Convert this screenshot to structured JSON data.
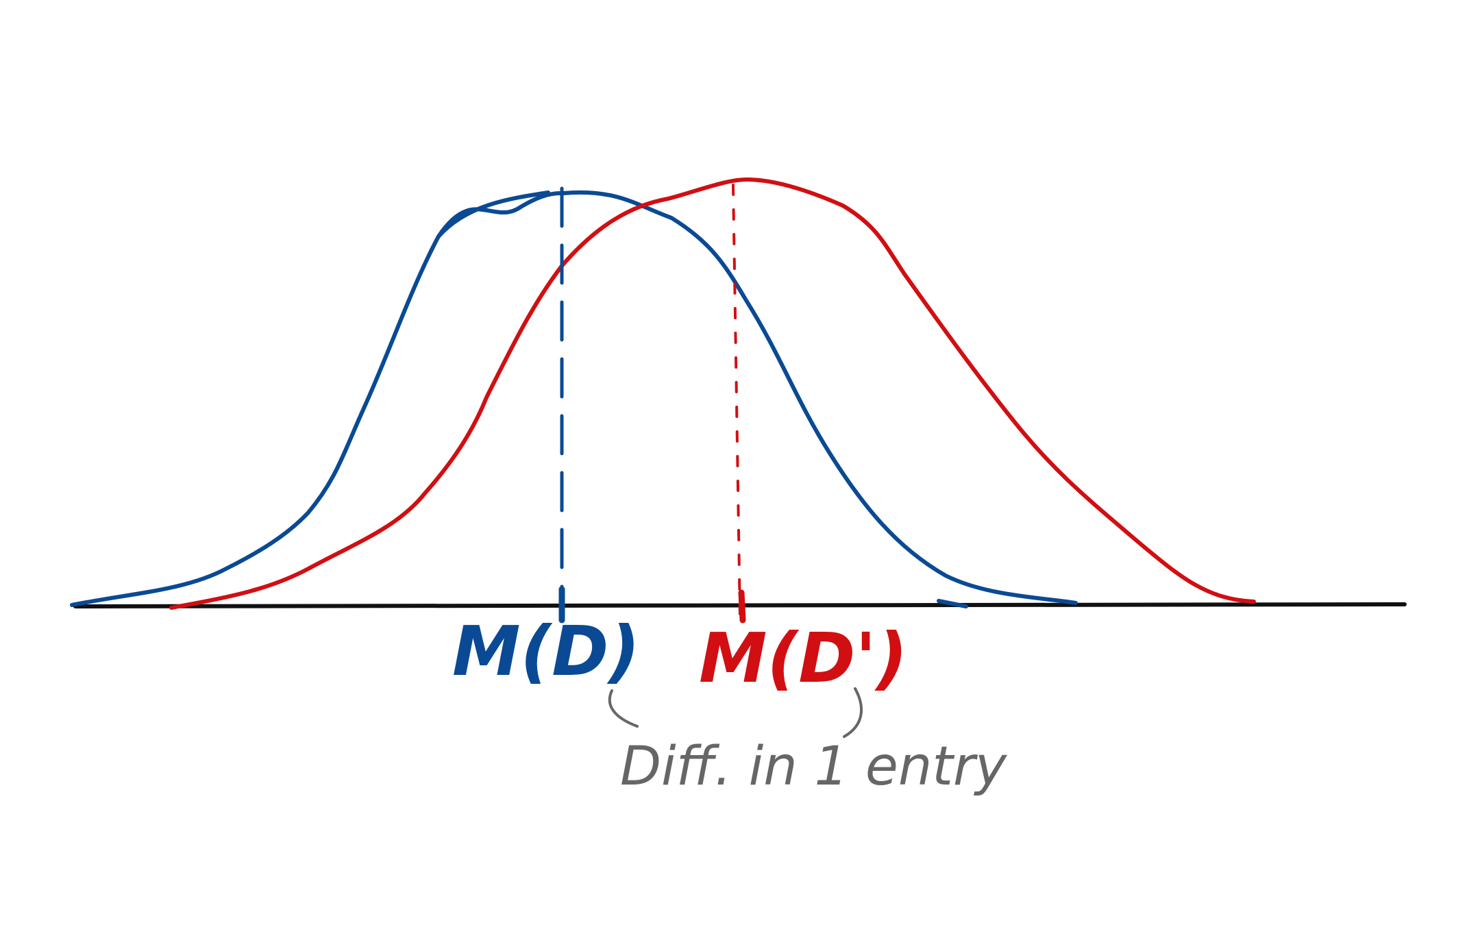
{
  "colors": {
    "blue": "#0a4a94",
    "red": "#d10f12",
    "axis": "#111111",
    "note": "#666666",
    "background": "#ffffff"
  },
  "curves": {
    "blue_label": "M(D)",
    "red_label": "M(D')"
  },
  "annotation": {
    "note": "Diff. in 1 entry"
  }
}
